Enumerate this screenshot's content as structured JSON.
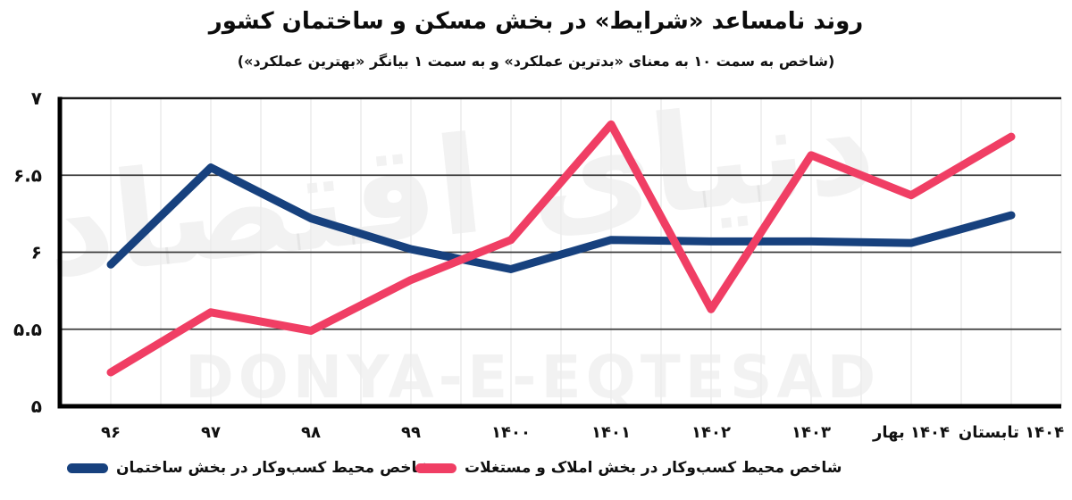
{
  "title": "روند نامساعد «شرایط» در بخش مسکن و ساختمان کشور",
  "subtitle": "(شاخص به سمت ۱۰ به معنای «بدترین عملکرد» و به سمت ۱ بیانگر «بهترین عملکرد»)",
  "watermark": {
    "latin": "DONYA-E-EQTESAD",
    "persian_logo": "دنیای اقتصاد"
  },
  "chart_data": {
    "type": "line",
    "title": "روند نامساعد «شرایط» در بخش مسکن و ساختمان کشور",
    "subtitle": "(شاخص به سمت ۱۰ به معنای «بدترین عملکرد» و به سمت ۱ بیانگر «بهترین عملکرد»)",
    "categories": [
      "۹۶",
      "۹۷",
      "۹۸",
      "۹۹",
      "۱۴۰۰",
      "۱۴۰۱",
      "۱۴۰۲",
      "۱۴۰۳",
      "بهار ۱۴۰۴",
      "تابستان ۱۴۰۴"
    ],
    "series": [
      {
        "name": "شاخص محیط کسب‌وکار در بخش ساختمان",
        "color": "#17417e",
        "values": [
          5.92,
          6.55,
          6.22,
          6.02,
          5.89,
          6.08,
          6.07,
          6.07,
          6.06,
          6.24
        ]
      },
      {
        "name": "شاخص محیط کسب‌وکار در بخش املاک و مستغلات",
        "color": "#f03e64",
        "values": [
          5.22,
          5.61,
          5.49,
          5.82,
          6.08,
          6.83,
          5.63,
          6.63,
          6.37,
          6.75
        ]
      }
    ],
    "xlabel": "",
    "ylabel": "",
    "ylim": [
      5,
      7
    ],
    "yticks": [
      5,
      5.5,
      6,
      6.5,
      7
    ],
    "ytick_labels": [
      "۵",
      "۵.۵",
      "۶",
      "۶.۵",
      "۷"
    ],
    "grid": {
      "horizontal": true,
      "vertical_minor": true
    },
    "grid_color": "#3d3d3d",
    "minor_grid_color": "#ececec",
    "axis_color": "#000000",
    "text_color": "#111111",
    "legend_position": "bottom-left",
    "line_width": 9
  }
}
